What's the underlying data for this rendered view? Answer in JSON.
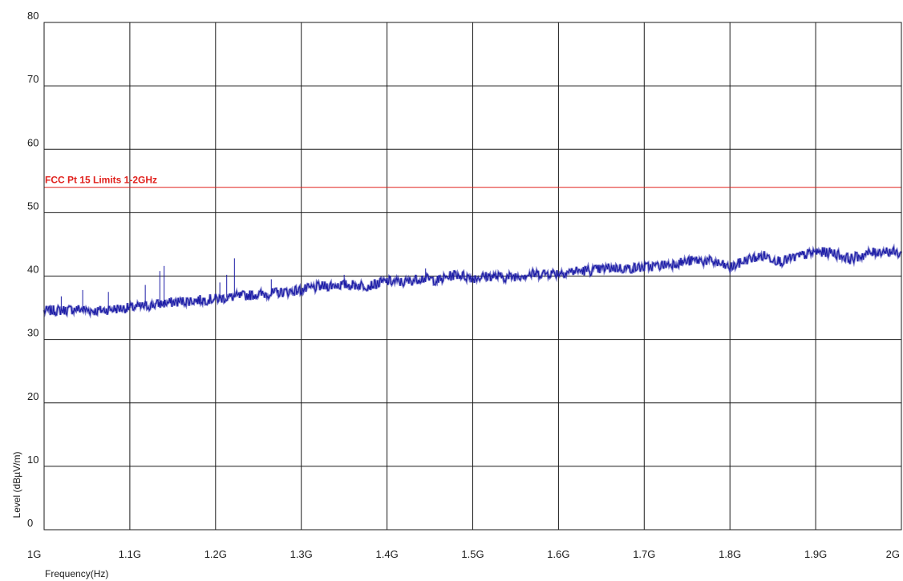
{
  "chart_data": {
    "type": "line",
    "title": "",
    "xlabel": "Frequency(Hz)",
    "ylabel": "Level (dBµV/m)",
    "x_unit": "GHz",
    "xlim": [
      1.0,
      2.0
    ],
    "ylim": [
      0,
      80
    ],
    "grid": true,
    "x_tick_values": [
      1.0,
      1.1,
      1.2,
      1.3,
      1.4,
      1.5,
      1.6,
      1.7,
      1.8,
      1.9,
      2.0
    ],
    "x_tick_labels": [
      "1G",
      "1.1G",
      "1.2G",
      "1.3G",
      "1.4G",
      "1.5G",
      "1.6G",
      "1.7G",
      "1.8G",
      "1.9G",
      "2G"
    ],
    "y_tick_values": [
      0,
      10,
      20,
      30,
      40,
      50,
      60,
      70,
      80
    ],
    "y_tick_labels": [
      "0",
      "10",
      "20",
      "30",
      "40",
      "50",
      "60",
      "70",
      "80"
    ],
    "limit_line": {
      "name": "FCC Pt 15 Limits 1-2GHz",
      "value": 54,
      "color": "#e0201c"
    },
    "series": [
      {
        "color": "#1c1ca6",
        "x": [
          1.0,
          1.02,
          1.04,
          1.06,
          1.08,
          1.1,
          1.12,
          1.14,
          1.16,
          1.18,
          1.2,
          1.22,
          1.24,
          1.26,
          1.28,
          1.3,
          1.32,
          1.34,
          1.36,
          1.38,
          1.4,
          1.42,
          1.44,
          1.46,
          1.48,
          1.5,
          1.52,
          1.54,
          1.56,
          1.58,
          1.6,
          1.62,
          1.64,
          1.66,
          1.68,
          1.7,
          1.72,
          1.74,
          1.76,
          1.78,
          1.8,
          1.82,
          1.84,
          1.86,
          1.88,
          1.9,
          1.92,
          1.94,
          1.96,
          1.98,
          2.0
        ],
        "y": [
          34.5,
          34.6,
          34.8,
          34.5,
          34.8,
          35.0,
          35.3,
          35.7,
          36.0,
          36.2,
          36.4,
          36.7,
          37.0,
          37.2,
          37.5,
          37.8,
          38.3,
          38.6,
          38.6,
          38.5,
          39.2,
          39.0,
          39.7,
          39.3,
          40.3,
          39.7,
          40.0,
          39.8,
          40.2,
          40.4,
          40.5,
          40.8,
          40.9,
          41.3,
          41.2,
          41.4,
          41.7,
          42.1,
          42.5,
          42.3,
          41.3,
          42.6,
          43.2,
          42.3,
          43.1,
          43.8,
          43.7,
          42.7,
          43.5,
          44.0,
          43.5
        ]
      }
    ],
    "spikes": [
      {
        "x": 1.02,
        "y": 36.8
      },
      {
        "x": 1.045,
        "y": 37.8
      },
      {
        "x": 1.075,
        "y": 37.5
      },
      {
        "x": 1.118,
        "y": 38.6
      },
      {
        "x": 1.135,
        "y": 40.8
      },
      {
        "x": 1.14,
        "y": 41.6
      },
      {
        "x": 1.205,
        "y": 39.0
      },
      {
        "x": 1.213,
        "y": 40.2
      },
      {
        "x": 1.222,
        "y": 42.8
      },
      {
        "x": 1.265,
        "y": 39.5
      },
      {
        "x": 1.35,
        "y": 40.2
      },
      {
        "x": 1.445,
        "y": 41.2
      }
    ]
  }
}
